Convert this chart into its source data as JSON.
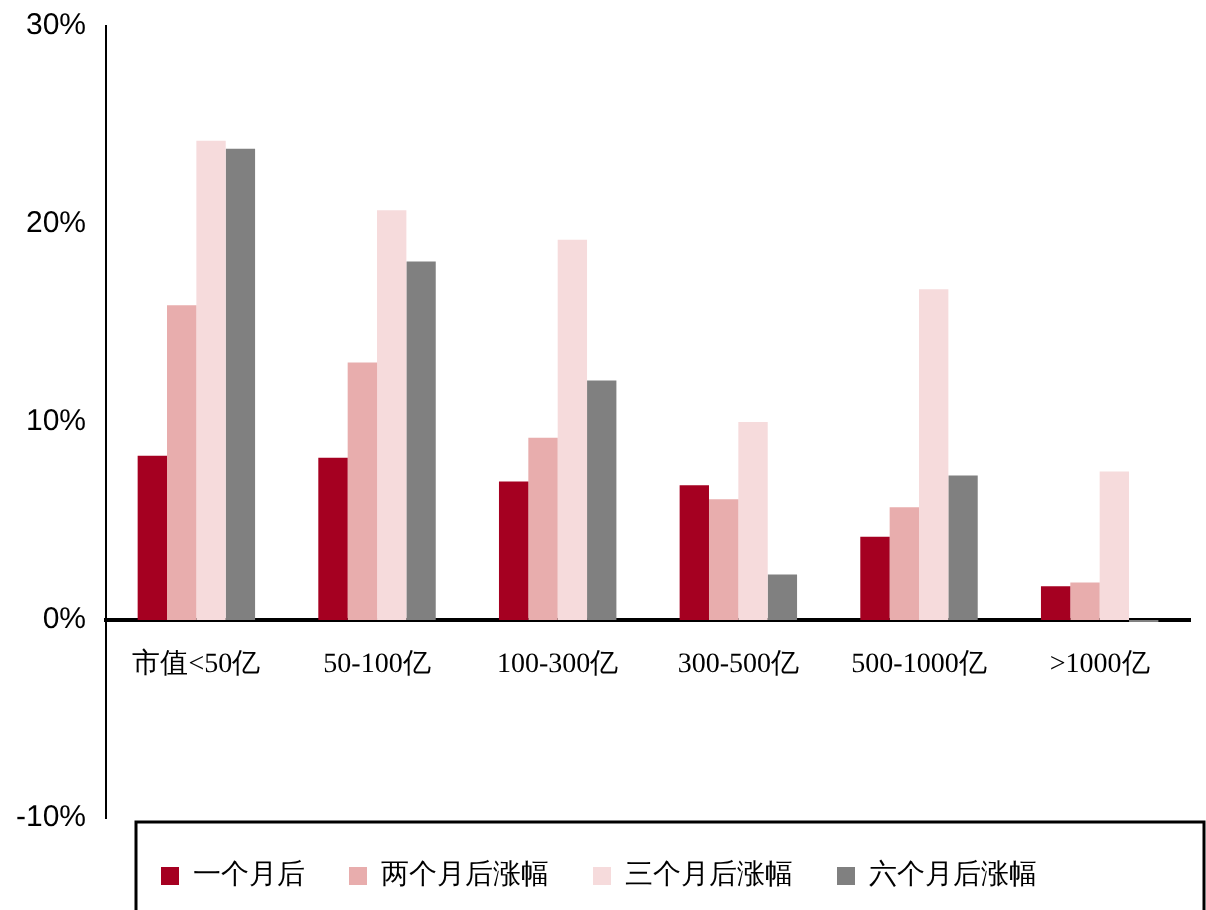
{
  "chart_data": {
    "type": "bar",
    "categories": [
      "市值<50亿",
      "50-100亿",
      "100-300亿",
      "300-500亿",
      "500-1000亿",
      ">1000亿"
    ],
    "series": [
      {
        "name": "一个月后",
        "color": "#a50021",
        "values": [
          8.3,
          8.2,
          7.0,
          6.8,
          4.2,
          1.7
        ]
      },
      {
        "name": "两个月后涨幅",
        "color": "#e8adad",
        "values": [
          15.9,
          13.0,
          9.2,
          6.1,
          5.7,
          1.9
        ]
      },
      {
        "name": "三个月后涨幅",
        "color": "#f6dbdc",
        "values": [
          24.2,
          20.7,
          19.2,
          10.0,
          16.7,
          7.5
        ]
      },
      {
        "name": "六个月后涨幅",
        "color": "#808080",
        "values": [
          23.8,
          18.1,
          12.1,
          2.3,
          7.3,
          -0.1
        ]
      }
    ],
    "ylim": [
      -10,
      30
    ],
    "yticks": [
      {
        "value": -10,
        "label": "-10%"
      },
      {
        "value": 0,
        "label": "0%"
      },
      {
        "value": 10,
        "label": "10%"
      },
      {
        "value": 20,
        "label": "20%"
      },
      {
        "value": 30,
        "label": "30%"
      }
    ],
    "grid": false,
    "legend": "bottom"
  }
}
